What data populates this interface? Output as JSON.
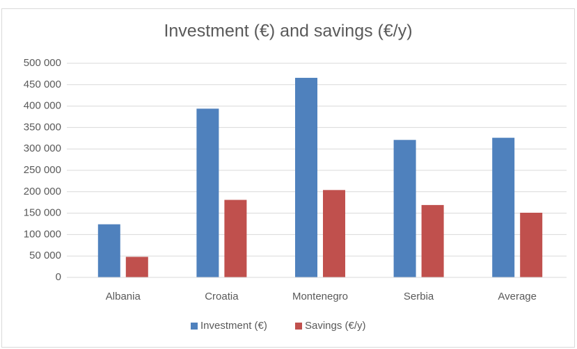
{
  "chart_data": {
    "type": "bar",
    "title": "Investment (€) and savings (€/y)",
    "categories": [
      "Albania",
      "Croatia",
      "Montenegro",
      "Serbia",
      "Average"
    ],
    "series": [
      {
        "name": "Investment (€)",
        "color": "#4f81bd",
        "values": [
          124000,
          394000,
          466000,
          321000,
          326000
        ]
      },
      {
        "name": "Savings (€/y)",
        "color": "#c0504d",
        "values": [
          48000,
          181000,
          204000,
          169000,
          151000
        ]
      }
    ],
    "ylim": [
      0,
      500000
    ],
    "yticks": [
      0,
      {
        "value": 50000,
        "label": "50 000"
      },
      {
        "value": 100000,
        "label": "100 000"
      },
      {
        "value": 150000,
        "label": "150 000"
      },
      {
        "value": 200000,
        "label": "200 000"
      },
      {
        "value": 250000,
        "label": "250 000"
      },
      {
        "value": 300000,
        "label": "300 000"
      },
      {
        "value": 350000,
        "label": "350 000"
      },
      {
        "value": 400000,
        "label": "400 000"
      },
      {
        "value": 450000,
        "label": "450 000"
      },
      {
        "value": 500000,
        "label": "500 000"
      }
    ],
    "grid": true,
    "legend": "bottom"
  }
}
